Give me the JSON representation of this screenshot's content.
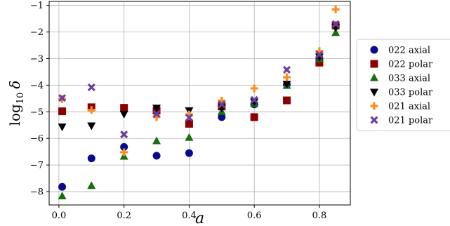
{
  "chart_data": {
    "type": "scatter",
    "xlabel": "a",
    "ylabel_main": "log",
    "ylabel_sub": "10",
    "ylabel_var": "δ",
    "xlim": [
      -0.03,
      0.895
    ],
    "ylim": [
      -8.5,
      -0.85
    ],
    "xticks": [
      0.0,
      0.2,
      0.4,
      0.6,
      0.8
    ],
    "xtick_labels": [
      "0.0",
      "0.2",
      "0.4",
      "0.6",
      "0.8"
    ],
    "yticks": [
      -8,
      -7,
      -6,
      -5,
      -4,
      -3,
      -2,
      -1
    ],
    "ytick_labels": [
      "−8",
      "−7",
      "−6",
      "−5",
      "−4",
      "−3",
      "−2",
      "−1"
    ],
    "grid": true,
    "legend_position": "right",
    "series": [
      {
        "name": "022 axial",
        "marker": "circle",
        "color": "#0a0a8c",
        "x": [
          0.01,
          0.1,
          0.2,
          0.3,
          0.4,
          0.5,
          0.6,
          0.7,
          0.8,
          0.85
        ],
        "y": [
          -7.82,
          -6.75,
          -6.32,
          -6.65,
          -6.55,
          -5.2,
          -4.72,
          -3.97,
          -2.98,
          -1.78
        ]
      },
      {
        "name": "022 polar",
        "marker": "square",
        "color": "#8b0000",
        "x": [
          0.01,
          0.1,
          0.2,
          0.3,
          0.4,
          0.5,
          0.6,
          0.7,
          0.8,
          0.85
        ],
        "y": [
          -4.98,
          -4.83,
          -4.85,
          -4.95,
          -5.45,
          -4.8,
          -5.2,
          -4.57,
          -3.15,
          -1.75
        ]
      },
      {
        "name": "033 axial",
        "marker": "triangle-up",
        "color": "#1a6e12",
        "x": [
          0.01,
          0.1,
          0.2,
          0.3,
          0.4,
          0.5,
          0.6,
          0.7,
          0.8,
          0.85
        ],
        "y": [
          -8.17,
          -7.78,
          -6.68,
          -6.1,
          -5.97,
          -5.0,
          -4.7,
          -4.02,
          -3.02,
          -2.03
        ]
      },
      {
        "name": "033 polar",
        "marker": "triangle-down",
        "color": "#000000",
        "x": [
          0.01,
          0.1,
          0.2,
          0.3,
          0.4,
          0.5,
          0.6,
          0.7,
          0.8,
          0.85
        ],
        "y": [
          -5.56,
          -5.52,
          -5.08,
          -4.85,
          -4.95,
          -4.85,
          -4.62,
          -3.95,
          -2.93,
          -1.82
        ]
      },
      {
        "name": "021 axial",
        "marker": "plus",
        "color": "#ff8c1a",
        "x": [
          0.01,
          0.1,
          0.2,
          0.3,
          0.4,
          0.5,
          0.6,
          0.7,
          0.8,
          0.85
        ],
        "y": [
          -4.52,
          -4.93,
          -6.52,
          -5.2,
          -5.1,
          -4.58,
          -4.12,
          -3.7,
          -2.72,
          -1.15
        ]
      },
      {
        "name": "021 polar",
        "marker": "x",
        "color": "#6a3fa0",
        "x": [
          0.01,
          0.1,
          0.2,
          0.3,
          0.4,
          0.5,
          0.6,
          0.7,
          0.8,
          0.85
        ],
        "y": [
          -4.48,
          -4.08,
          -5.85,
          -5.08,
          -5.22,
          -4.72,
          -4.55,
          -3.42,
          -2.85,
          -1.7
        ]
      }
    ]
  }
}
